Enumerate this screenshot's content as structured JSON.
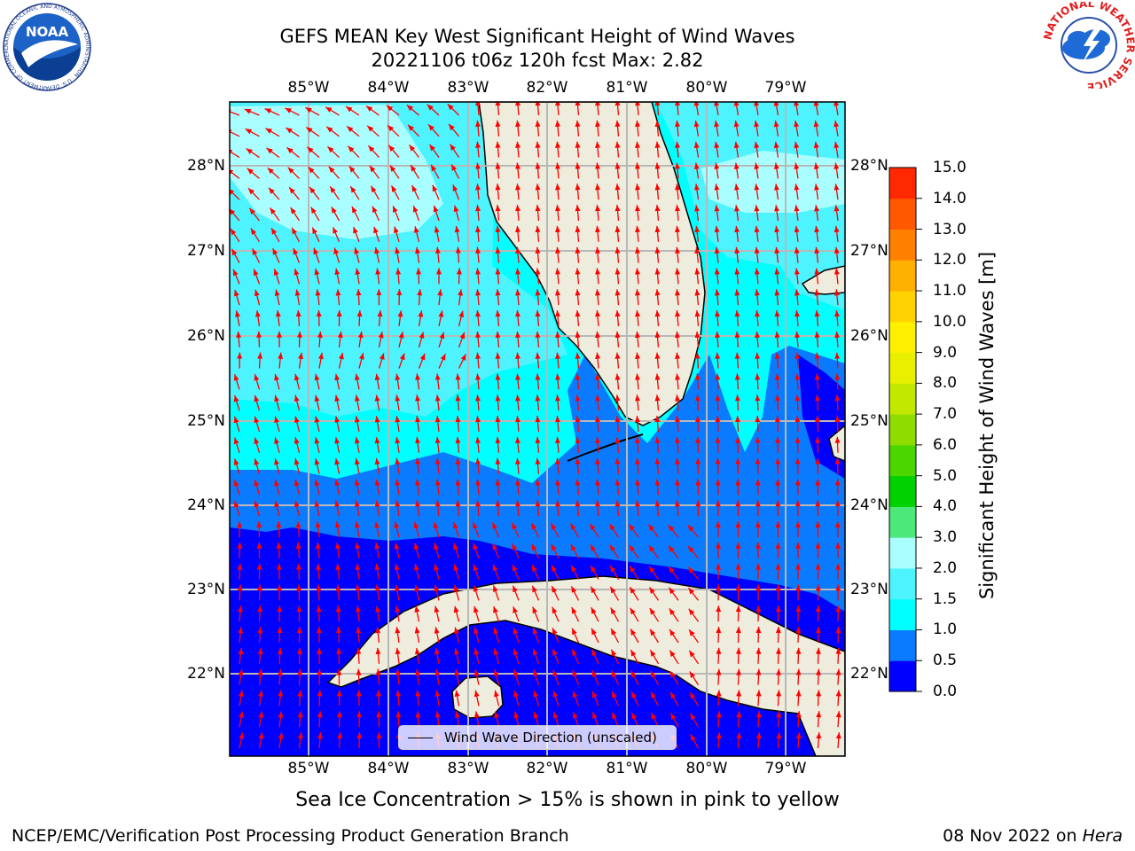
{
  "header": {
    "title_line1": "GEFS MEAN Key West Significant Height of Wind Waves",
    "title_line2": "20221106 t06z 120h fcst   Max: 2.82"
  },
  "logos": {
    "noaa_text": "NOAA",
    "noaa_ring_text": "NATIONAL OCEANIC AND ATMOSPHERIC ADMINISTRATION · U.S. DEPARTMENT OF COMMERCE",
    "nws_ring_text": "NATIONAL WEATHER SERVICE"
  },
  "map": {
    "lon_labels": [
      "85°W",
      "84°W",
      "83°W",
      "82°W",
      "81°W",
      "80°W",
      "79°W"
    ],
    "lat_labels": [
      "28°N",
      "27°N",
      "26°N",
      "25°N",
      "24°N",
      "23°N",
      "22°N"
    ],
    "legend_label": "Wind Wave Direction (unscaled)",
    "colors": {
      "land": "#eeecdc",
      "grid": "#b8b8b8",
      "arrow": "#ff0000",
      "coast": "#000000"
    }
  },
  "colorbar": {
    "title": "Significant Height of Wind Waves [m]",
    "tick_labels": [
      "0.0",
      "0.5",
      "1.0",
      "1.5",
      "2.0",
      "3.0",
      "4.0",
      "5.0",
      "6.0",
      "7.0",
      "8.0",
      "9.0",
      "10.0",
      "11.0",
      "12.0",
      "13.0",
      "14.0",
      "15.0"
    ],
    "colors": [
      "#0000ff",
      "#0a7bff",
      "#00ffff",
      "#4df3ff",
      "#a9ffff",
      "#4de87a",
      "#00d200",
      "#4cd600",
      "#8edc00",
      "#c2e800",
      "#e8f000",
      "#fff000",
      "#ffd200",
      "#ffb000",
      "#ff8000",
      "#ff5800",
      "#ff2800"
    ]
  },
  "notes": {
    "sea_ice": "Sea Ice Concentration > 15% is shown in pink to yellow"
  },
  "footer": {
    "left": "NCEP/EMC/Verification Post Processing Product Generation Branch",
    "right_date": "08 Nov 2022 on ",
    "right_machine": "Hera"
  }
}
